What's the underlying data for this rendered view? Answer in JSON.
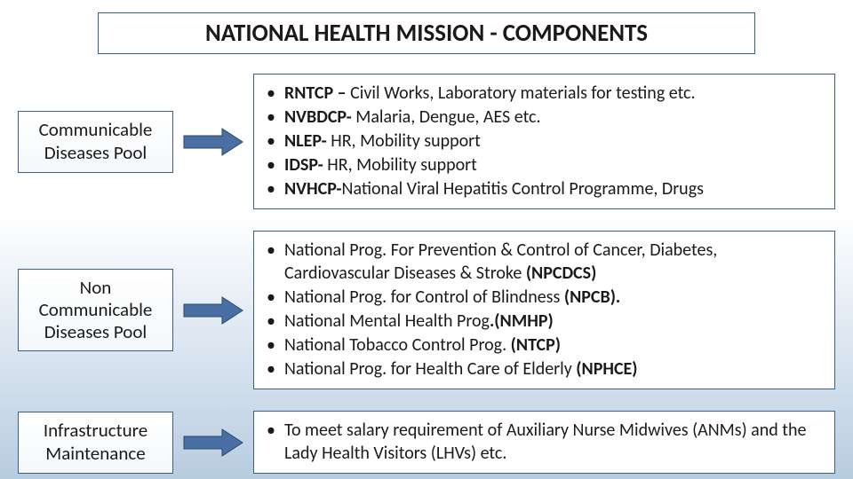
{
  "title": "NATIONAL HEALTH MISSION - COMPONENTS",
  "colors": {
    "border": "#3a5f8a",
    "arrow_fill": "#4a6fa5",
    "arrow_stroke": "#2a4a6a",
    "text": "#1a1a1a",
    "box_bg": "#ffffff"
  },
  "rows": [
    {
      "label": "Communicable Diseases Pool",
      "items": [
        [
          {
            "t": "RNTCP –",
            "b": true
          },
          {
            "t": "  Civil Works, Laboratory materials for testing etc."
          }
        ],
        [
          {
            "t": "NVBDCP-",
            "b": true
          },
          {
            "t": "  Malaria, Dengue, AES etc."
          }
        ],
        [
          {
            "t": "NLEP-",
            "b": true
          },
          {
            "t": "  HR, Mobility support"
          }
        ],
        [
          {
            "t": "IDSP-",
            "b": true
          },
          {
            "t": "  HR, Mobility support"
          }
        ],
        [
          {
            "t": "NVHCP-",
            "b": true
          },
          {
            "t": "National Viral Hepatitis Control Programme, Drugs"
          }
        ]
      ]
    },
    {
      "label": "Non Communicable Diseases Pool",
      "items": [
        [
          {
            "t": "National Prog. For Prevention & Control of Cancer, Diabetes, Cardiovascular Diseases & Stroke "
          },
          {
            "t": "(NPCDCS)",
            "b": true
          }
        ],
        [
          {
            "t": "National Prog. for Control of Blindness "
          },
          {
            "t": "(NPCB).",
            "b": true
          }
        ],
        [
          {
            "t": "National Mental Health Prog"
          },
          {
            "t": ".(NMHP)",
            "b": true
          }
        ],
        [
          {
            "t": "National Tobacco Control Prog. "
          },
          {
            "t": "(NTCP)",
            "b": true
          }
        ],
        [
          {
            "t": "National Prog. for Health Care of Elderly "
          },
          {
            "t": "(NPHCE)",
            "b": true
          }
        ]
      ]
    },
    {
      "label": "Infrastructure Maintenance",
      "items": [
        [
          {
            "t": "To meet salary requirement of Auxiliary Nurse Midwives (ANMs) and the Lady Health Visitors (LHVs) etc."
          }
        ]
      ]
    }
  ],
  "arrow": {
    "width": 70,
    "height": 34
  }
}
